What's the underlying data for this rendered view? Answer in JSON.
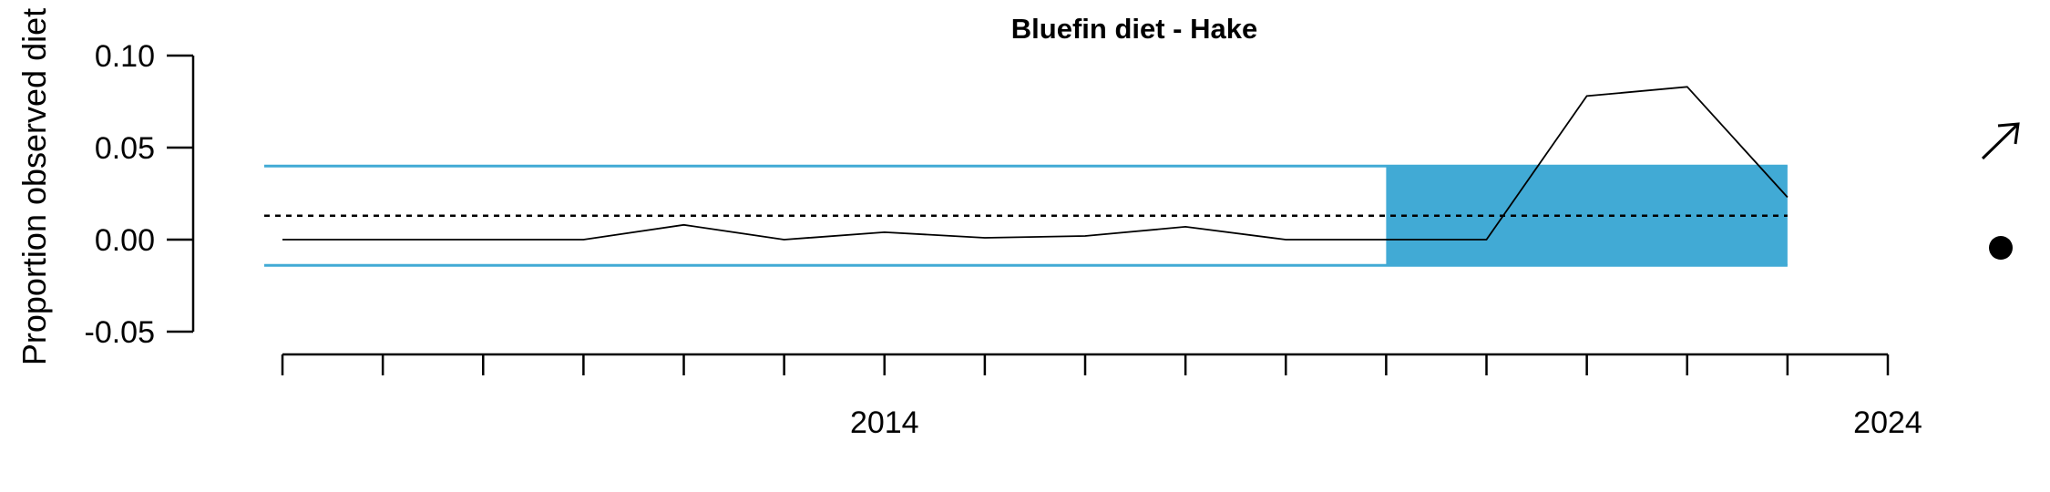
{
  "chart_data": {
    "type": "line",
    "title": "Bluefin diet - Hake",
    "ylabel": "Proportion observed diet",
    "xlabel": "",
    "x": [
      2009,
      2010,
      2011,
      2012,
      2013,
      2014,
      2015,
      2016,
      2017,
      2018,
      2019,
      2020,
      2021,
      2022,
      2023,
      2024
    ],
    "series": [
      {
        "values": [
          0.0,
          0.0,
          0.0,
          0.0,
          0.008,
          0.0,
          0.004,
          0.001,
          0.002,
          0.007,
          0.0,
          0.0,
          0.0,
          0.078,
          0.083,
          0.023
        ]
      }
    ],
    "mean": 0.013,
    "band_upper": 0.04,
    "band_lower": -0.014,
    "highlight_x": [
      2020,
      2024
    ],
    "xlim": [
      2008.8,
      2025.0
    ],
    "x_ticks": [
      2009,
      2010,
      2011,
      2012,
      2013,
      2014,
      2015,
      2016,
      2017,
      2018,
      2019,
      2020,
      2021,
      2022,
      2023,
      2024,
      2025
    ],
    "x_tick_labels": [
      {
        "value": 2015,
        "label": "2014"
      },
      {
        "value": 2025,
        "label": "2024"
      }
    ],
    "ylim": [
      -0.05,
      0.1
    ],
    "y_ticks": [
      {
        "value": 0.1,
        "label": "0.10"
      },
      {
        "value": 0.05,
        "label": "0.05"
      },
      {
        "value": 0.0,
        "label": "0.00"
      },
      {
        "value": -0.05,
        "label": "-0.05"
      }
    ],
    "trend_indicator": "arrow-up-right",
    "status_indicator": "filled-circle",
    "colors": {
      "band": "#41aad5",
      "line": "#000000",
      "mean": "#000000"
    },
    "grid": false
  }
}
